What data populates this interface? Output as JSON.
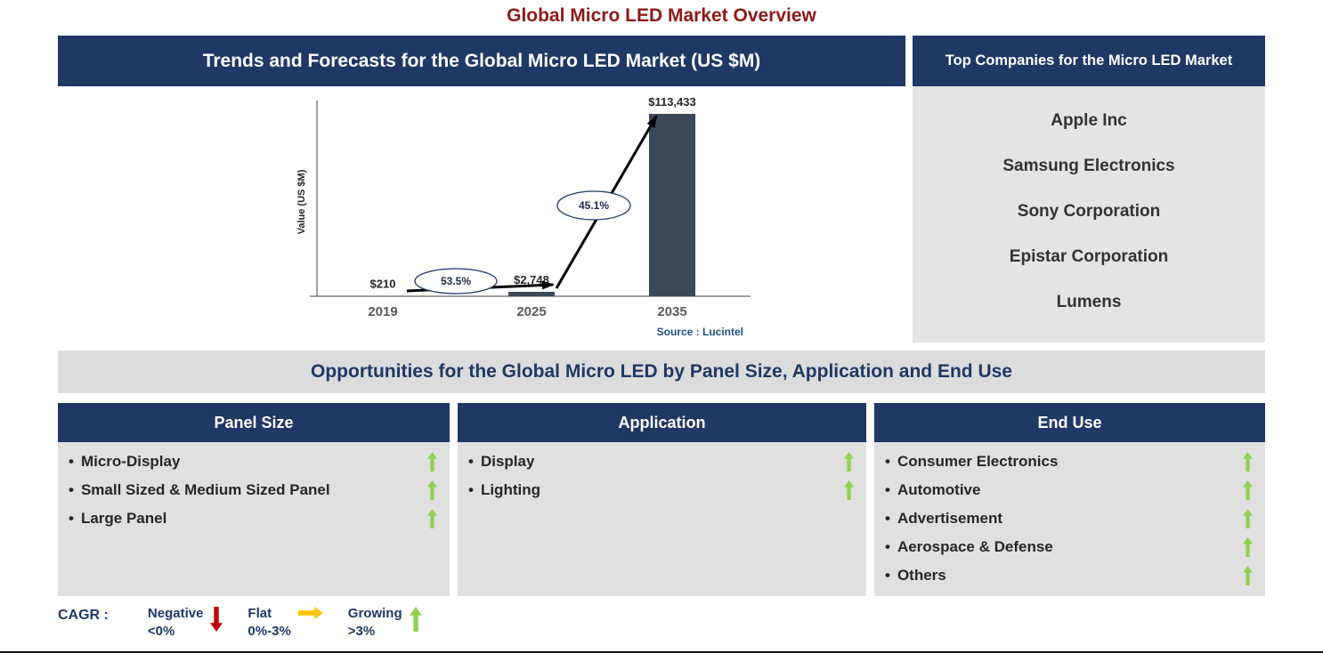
{
  "page_title": "Global Micro LED Market Overview",
  "colors": {
    "header_navy": "#1F3864",
    "title_red": "#8B1A1A",
    "panel_gray": "#E0E0E0",
    "banner_gray": "#DCDCDC",
    "bar_color": "#3B4859",
    "growing_green": "#92D050",
    "negative_red": "#C00000",
    "flat_orange": "#FFC000",
    "source_blue": "#1F4E79"
  },
  "trends_panel": {
    "title": "Trends and Forecasts for the Global Micro LED Market (US $M)"
  },
  "chart_data": {
    "type": "bar",
    "title": "Trends and Forecasts for the Global Micro LED Market (US $M)",
    "categories": [
      "2019",
      "2025",
      "2035"
    ],
    "values": [
      210,
      2748,
      113433
    ],
    "value_labels": [
      "$210",
      "$2,748",
      "$113,433"
    ],
    "growth_labels": [
      "53.5%",
      "45.1%"
    ],
    "ylabel": "Value (US $M)",
    "xlabel": "",
    "ylim": [
      0,
      113433
    ],
    "grid": false,
    "legend": "none",
    "bar_color": "#3B4859",
    "source": "Source : Lucintel"
  },
  "companies_panel": {
    "title": "Top Companies for the Micro LED Market",
    "companies": [
      "Apple Inc",
      "Samsung Electronics",
      "Sony Corporation",
      "Epistar Corporation",
      "Lumens"
    ]
  },
  "opportunities": {
    "banner": "Opportunities for the Global Micro LED by Panel Size, Application and End Use",
    "item_trend_icon": "up-arrow-icon",
    "item_trend_color": "#92D050",
    "columns": [
      {
        "title": "Panel Size",
        "items": [
          "Micro-Display",
          "Small Sized & Medium Sized Panel",
          "Large Panel"
        ]
      },
      {
        "title": "Application",
        "items": [
          "Display",
          "Lighting"
        ]
      },
      {
        "title": "End Use",
        "items": [
          "Consumer Electronics",
          "Automotive",
          "Advertisement",
          "Aerospace & Defense",
          "Others"
        ]
      }
    ]
  },
  "legend": {
    "label": "CAGR :",
    "items": [
      {
        "name": "Negative",
        "range": "<0%",
        "arrow": "down",
        "color": "#C00000"
      },
      {
        "name": "Flat",
        "range": "0%-3%",
        "arrow": "right",
        "color": "#FFC000"
      },
      {
        "name": "Growing",
        "range": ">3%",
        "arrow": "up",
        "color": "#92D050"
      }
    ]
  }
}
